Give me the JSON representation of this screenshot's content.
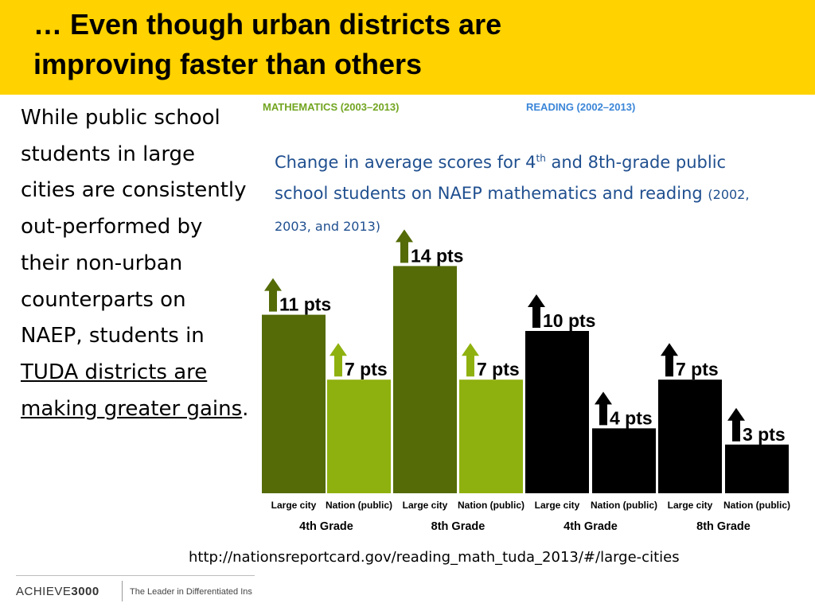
{
  "title": {
    "line1": "… Even though urban districts are",
    "line2": "improving faster than others"
  },
  "body": {
    "part1": "While public school students in large cities are consistently out-performed  by their non-urban counterparts on NAEP, students in ",
    "underline": "TUDA districts are making greater gains",
    "part2": "."
  },
  "subtitle": {
    "text_a": "Change in average scores for 4",
    "sup": "th",
    "text_b": " and 8th-grade public school students on NAEP mathematics and reading ",
    "years": "(2002, 2003, and 2013)"
  },
  "source": "http://nationsreportcard.gov/reading_math_tuda_2013/#/large-cities",
  "footer": {
    "logo_a": "ACHIEVE",
    "logo_b": "3000",
    "tagline": "The Leader in Differentiated Ins"
  },
  "colors": {
    "math_dark": "#546b08",
    "math_light": "#8fb10f",
    "read_dark": "#0d4494",
    "read_light": "#2e8ff2",
    "title_band": "#ffd200"
  },
  "chart_data": {
    "type": "bar",
    "headers": {
      "math": "MATHEMATICS (2003–2013)",
      "reading": "READING (2002–2013)"
    },
    "categories": [
      "Large city",
      "Nation (public)",
      "Large city",
      "Nation (public)",
      "Large city",
      "Nation (public)",
      "Large city",
      "Nation (public)"
    ],
    "groups": [
      "4th Grade",
      "8th Grade",
      "4th Grade",
      "8th Grade"
    ],
    "values": [
      11,
      7,
      14,
      7,
      10,
      4,
      7,
      3
    ],
    "labels": [
      "11 pts",
      "7 pts",
      "14 pts",
      "7 pts",
      "10 pts",
      "4 pts",
      "7 pts",
      "3 pts"
    ],
    "subject": [
      "math",
      "math",
      "math",
      "math",
      "reading",
      "reading",
      "reading",
      "reading"
    ],
    "shade": [
      "dark",
      "light",
      "dark",
      "light",
      "dark",
      "light",
      "dark",
      "light"
    ],
    "ylim": [
      0,
      14
    ],
    "grid": false,
    "legend": "none"
  }
}
